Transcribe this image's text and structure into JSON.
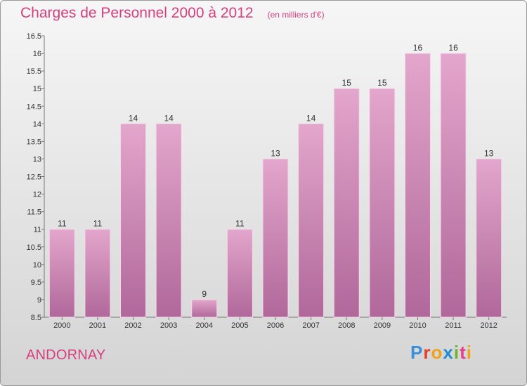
{
  "header": {
    "title": "Charges de Personnel 2000 à 2012",
    "subtitle": "(en milliers d'€)"
  },
  "footer": {
    "town": "ANDORNAY",
    "logo": "Proxiti",
    "logo_colors": [
      "#3b8fd8",
      "#e2402b",
      "#f0a21b",
      "#1f8fd1",
      "#6ab42d",
      "#e63d8f",
      "#f0a21b"
    ]
  },
  "colors": {
    "bar_top": "#e3a6cc",
    "bar_bottom": "#b0689a",
    "accent": "#d4407f"
  },
  "chart_data": {
    "type": "bar",
    "title": "Charges de Personnel 2000 à 2012",
    "subtitle": "(en milliers d'€)",
    "xlabel": "",
    "ylabel": "",
    "categories": [
      "2000",
      "2001",
      "2002",
      "2003",
      "2004",
      "2005",
      "2006",
      "2007",
      "2008",
      "2009",
      "2010",
      "2011",
      "2012"
    ],
    "values": [
      11,
      11,
      14,
      14,
      9,
      11,
      13,
      14,
      15,
      15,
      16,
      16,
      13
    ],
    "data_labels": [
      "11",
      "11",
      "14",
      "14",
      "9",
      "11",
      "13",
      "14",
      "15",
      "15",
      "16",
      "16",
      "13"
    ],
    "ylim": [
      8.5,
      16.5
    ],
    "yticks": [
      8.5,
      9,
      9.5,
      10,
      10.5,
      11,
      11.5,
      12,
      12.5,
      13,
      13.5,
      14,
      14.5,
      15,
      15.5,
      16,
      16.5
    ],
    "ytick_labels": [
      "8.5",
      "9",
      "9.5",
      "10",
      "10.5",
      "11",
      "11.5",
      "12",
      "12.5",
      "13",
      "13.5",
      "14",
      "14.5",
      "15",
      "15.5",
      "16",
      "16.5"
    ],
    "grid": false,
    "legend": "none"
  }
}
